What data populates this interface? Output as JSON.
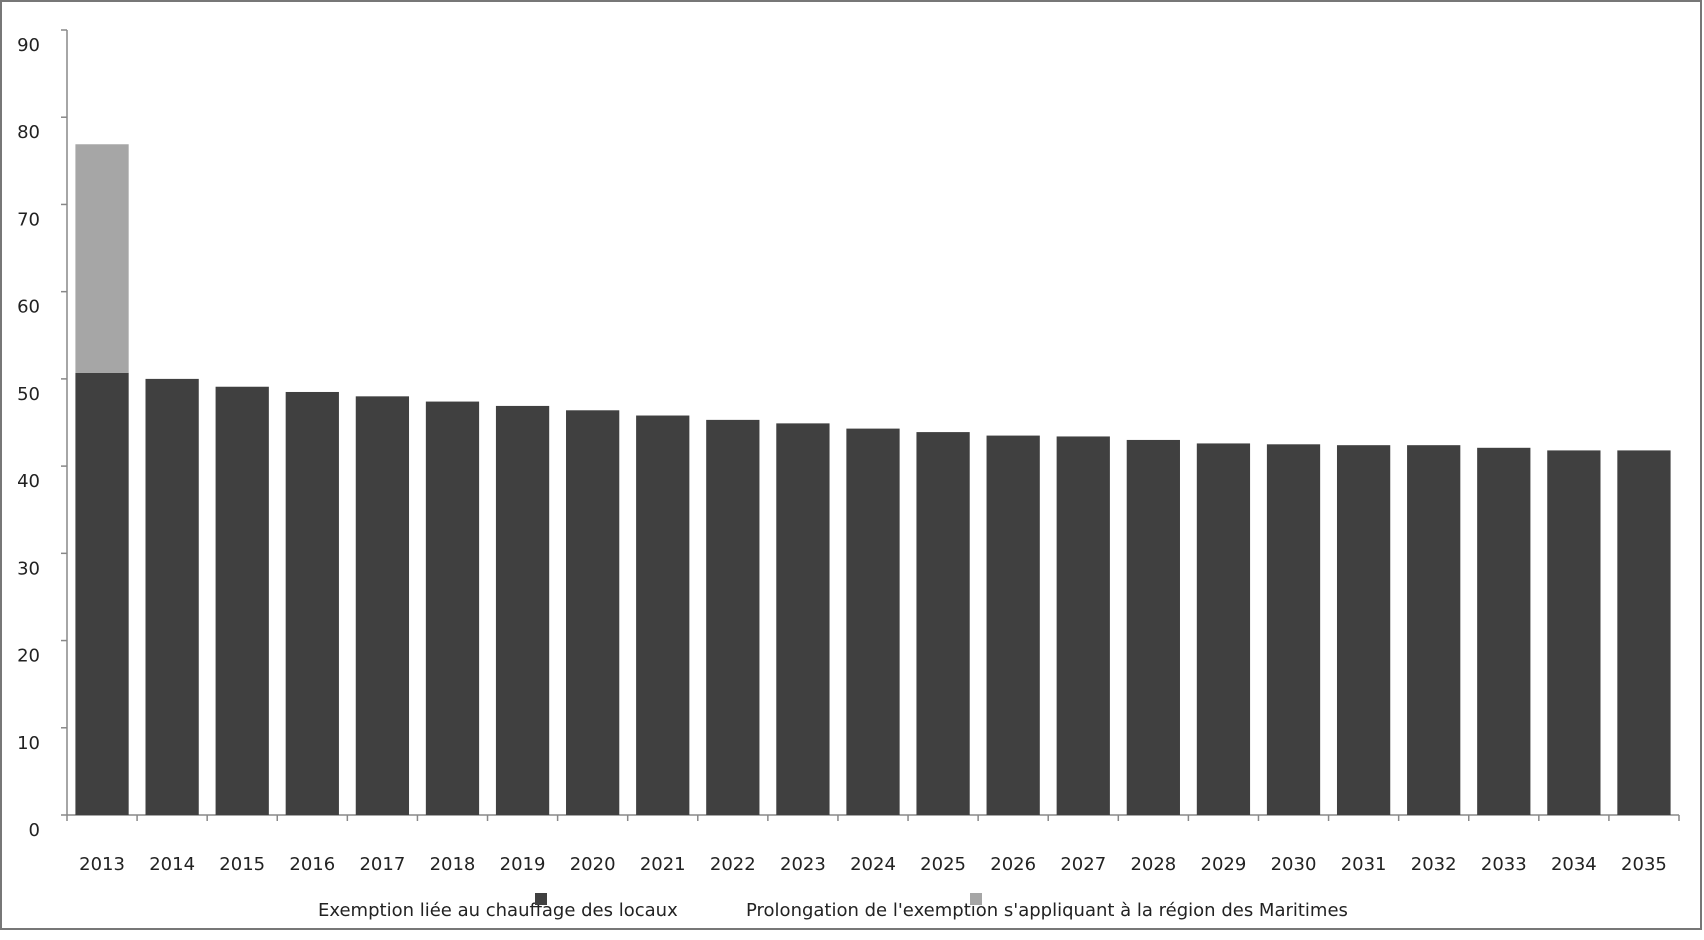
{
  "chart_data": {
    "type": "stacked_bar",
    "categories": [
      "2013",
      "2014",
      "2015",
      "2016",
      "2017",
      "2018",
      "2019",
      "2020",
      "2021",
      "2022",
      "2023",
      "2024",
      "2025",
      "2026",
      "2027",
      "2028",
      "2029",
      "2030",
      "2031",
      "2032",
      "2033",
      "2034",
      "2035"
    ],
    "series": [
      {
        "name": "Exemption liée au chauffage des locaux",
        "color": "#404040",
        "values": [
          50.7,
          50.0,
          49.1,
          48.5,
          48.0,
          47.4,
          46.9,
          46.4,
          45.8,
          45.3,
          44.9,
          44.3,
          43.9,
          43.5,
          43.4,
          43.0,
          42.6,
          42.5,
          42.4,
          42.4,
          42.1,
          41.8,
          41.8
        ]
      },
      {
        "name": "Prolongation de l'exemption s'appliquant à la région des Maritimes",
        "color": "#a6a6a6",
        "values": [
          26.2,
          null,
          null,
          null,
          null,
          null,
          null,
          null,
          null,
          null,
          null,
          null,
          null,
          null,
          null,
          null,
          null,
          null,
          null,
          null,
          null,
          null,
          null
        ]
      }
    ],
    "ylim": [
      0,
      90
    ],
    "yticks": [
      0,
      10,
      20,
      30,
      40,
      50,
      60,
      70,
      80,
      90
    ],
    "grid": false,
    "legend": "bottom"
  }
}
